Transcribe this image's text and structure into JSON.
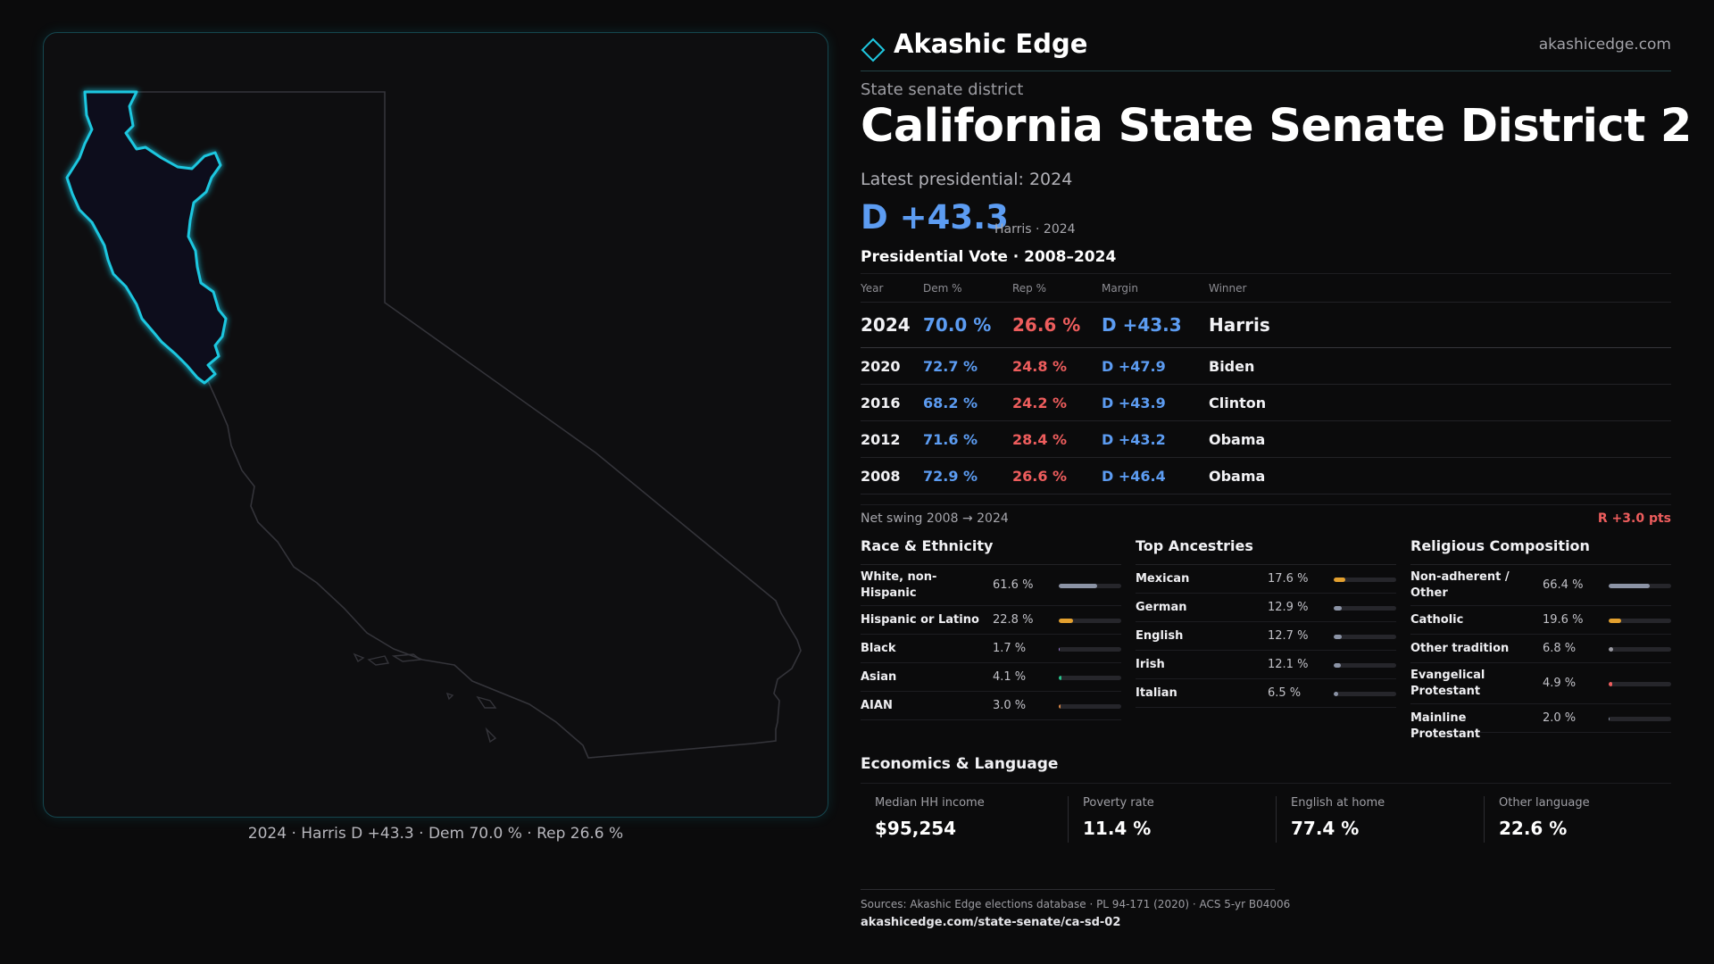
{
  "brand": {
    "name": "Akashic Edge",
    "url": "akashicedge.com",
    "accent": "#1fc7e0"
  },
  "header": {
    "subtype": "State senate district",
    "title": "California State Senate District 2",
    "latest_label": "Latest presidential: 2024",
    "margin_big": "D +43.3",
    "margin_note": "Harris · 2024"
  },
  "map": {
    "caption": "2024 · Harris D +43.3 · Dem 70.0 % · Rep 26.6 %",
    "highlight_color": "#1fc7e0",
    "outline_color": "#34343a"
  },
  "presidential": {
    "heading": "Presidential Vote · 2008–2024",
    "columns": [
      "Year",
      "Dem %",
      "Rep %",
      "Margin",
      "Winner"
    ],
    "rows": [
      {
        "year": "2024",
        "dem": "70.0 %",
        "rep": "26.6 %",
        "margin": "D +43.3",
        "winner": "Harris"
      },
      {
        "year": "2020",
        "dem": "72.7 %",
        "rep": "24.8 %",
        "margin": "D +47.9",
        "winner": "Biden"
      },
      {
        "year": "2016",
        "dem": "68.2 %",
        "rep": "24.2 %",
        "margin": "D +43.9",
        "winner": "Clinton"
      },
      {
        "year": "2012",
        "dem": "71.6 %",
        "rep": "28.4 %",
        "margin": "D +43.2",
        "winner": "Obama"
      },
      {
        "year": "2008",
        "dem": "72.9 %",
        "rep": "26.6 %",
        "margin": "D +46.4",
        "winner": "Obama"
      }
    ],
    "dem_color": "#5c9cf2",
    "rep_color": "#ee5d5d"
  },
  "swing": {
    "label": "Net swing 2008 → 2024",
    "value": "R +3.0 pts"
  },
  "race": {
    "title": "Race & Ethnicity",
    "items": [
      {
        "label": "White, non-Hispanic",
        "value": "61.6 %",
        "share": 0.616,
        "color": "#8b93a5"
      },
      {
        "label": "Hispanic or Latino",
        "value": "22.8 %",
        "share": 0.228,
        "color": "#e3a02f"
      },
      {
        "label": "Black",
        "value": "1.7 %",
        "share": 0.017,
        "color": "#9a7ad8"
      },
      {
        "label": "Asian",
        "value": "4.1 %",
        "share": 0.041,
        "color": "#27c28b"
      },
      {
        "label": "AIAN",
        "value": "3.0 %",
        "share": 0.03,
        "color": "#d88645"
      }
    ]
  },
  "ancestry": {
    "title": "Top Ancestries",
    "items": [
      {
        "label": "Mexican",
        "value": "17.6 %",
        "share": 0.176,
        "color": "#e3a02f"
      },
      {
        "label": "German",
        "value": "12.9 %",
        "share": 0.129,
        "color": "#8b93a5"
      },
      {
        "label": "English",
        "value": "12.7 %",
        "share": 0.127,
        "color": "#8b93a5"
      },
      {
        "label": "Irish",
        "value": "12.1 %",
        "share": 0.121,
        "color": "#8b93a5"
      },
      {
        "label": "Italian",
        "value": "6.5 %",
        "share": 0.065,
        "color": "#8b93a5"
      }
    ]
  },
  "religion": {
    "title": "Religious Composition",
    "items": [
      {
        "label": "Non-adherent / Other",
        "value": "66.4 %",
        "share": 0.664,
        "color": "#8b93a5"
      },
      {
        "label": "Catholic",
        "value": "19.6 %",
        "share": 0.196,
        "color": "#e3a02f"
      },
      {
        "label": "Other tradition",
        "value": "6.8 %",
        "share": 0.068,
        "color": "#9a9aa2"
      },
      {
        "label": "Evangelical Protestant",
        "value": "4.9 %",
        "share": 0.049,
        "color": "#ee5d5d"
      },
      {
        "label": "Mainline Protestant",
        "value": "2.0 %",
        "share": 0.02,
        "color": "#8b93a5"
      }
    ]
  },
  "economics": {
    "title": "Economics & Language",
    "cards": [
      {
        "label": "Median HH income",
        "value": "$95,254"
      },
      {
        "label": "Poverty rate",
        "value": "11.4 %"
      },
      {
        "label": "English at home",
        "value": "77.4 %"
      },
      {
        "label": "Other language",
        "value": "22.6 %"
      }
    ]
  },
  "footer": {
    "sources": "Sources: Akashic Edge elections database · PL 94-171 (2020) · ACS 5-yr B04006",
    "link": "akashicedge.com/state-senate/ca-sd-02"
  }
}
